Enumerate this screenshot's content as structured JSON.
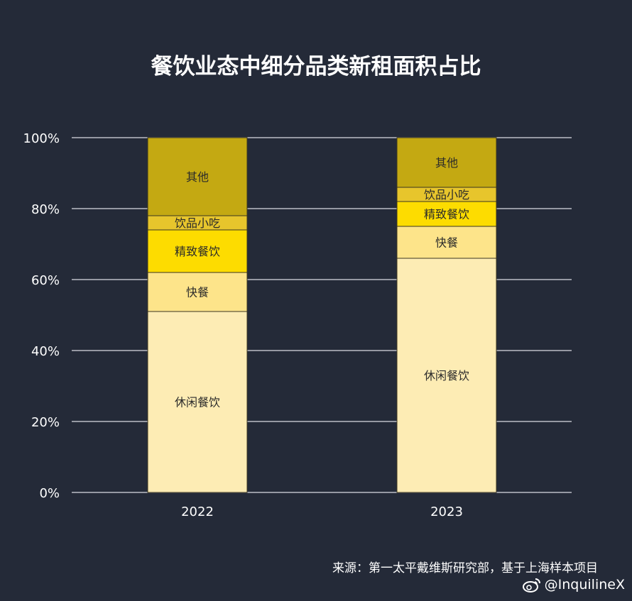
{
  "chart_data": {
    "type": "bar",
    "stacked": true,
    "title": "餐饮业态中细分品类新租面积占比",
    "categories": [
      "2022",
      "2023"
    ],
    "series": [
      {
        "name": "休闲餐饮",
        "values": [
          51,
          66
        ],
        "color": "#fdecb4"
      },
      {
        "name": "快餐",
        "values": [
          11,
          9
        ],
        "color": "#fde48a"
      },
      {
        "name": "精致餐饮",
        "values": [
          12,
          7
        ],
        "color": "#fddc00"
      },
      {
        "name": "饮品小吃",
        "values": [
          4,
          4
        ],
        "color": "#e7c52c"
      },
      {
        "name": "其他",
        "values": [
          22,
          14
        ],
        "color": "#c4a912"
      }
    ],
    "yticks": [
      "0%",
      "20%",
      "40%",
      "60%",
      "80%",
      "100%"
    ],
    "ylim": [
      0,
      100
    ],
    "grid": true,
    "legend": "none"
  },
  "source_text": "来源：第一太平戴维斯研究部，基于上海样本项目",
  "watermark_text": "@InquilineX"
}
